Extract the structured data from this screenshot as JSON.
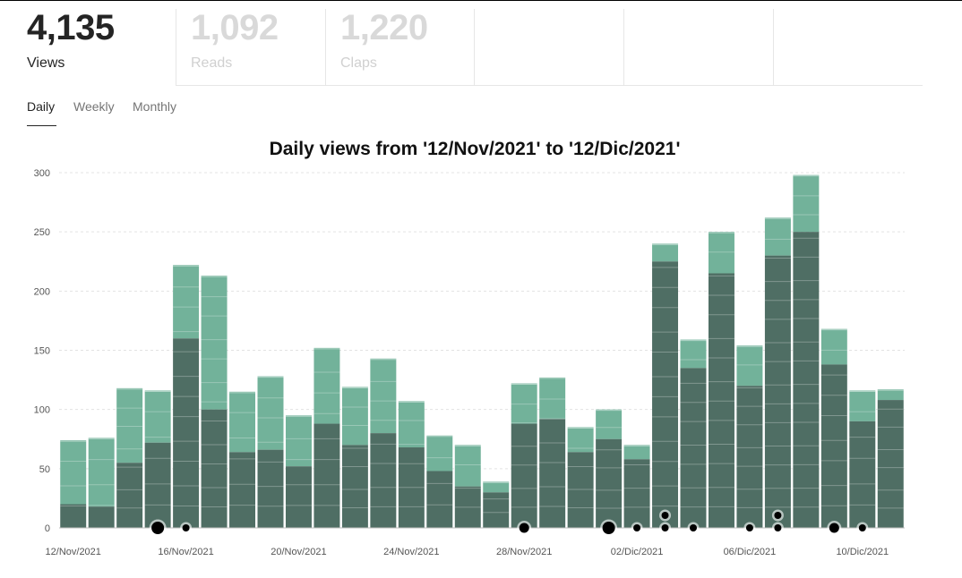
{
  "stats": [
    {
      "value": "4,135",
      "label": "Views"
    },
    {
      "value": "1,092",
      "label": "Reads"
    },
    {
      "value": "1,220",
      "label": "Claps"
    }
  ],
  "tabs": [
    {
      "label": "Daily",
      "active": true
    },
    {
      "label": "Weekly",
      "active": false
    },
    {
      "label": "Monthly",
      "active": false
    }
  ],
  "colors": {
    "bar_light": "#72b29a",
    "bar_dark": "#4f6e64",
    "bar_darkest": "#46504c",
    "marker": "#000000"
  },
  "chart_data": {
    "type": "bar",
    "title": "Daily views from '12/Nov/2021' to '12/Dic/2021'",
    "xlabel": "",
    "ylabel": "",
    "ylim": [
      0,
      300
    ],
    "yticks": [
      0,
      50,
      100,
      150,
      200,
      250,
      300
    ],
    "grid": true,
    "stacked": true,
    "categories": [
      "12/Nov/2021",
      "13/Nov/2021",
      "14/Nov/2021",
      "15/Nov/2021",
      "16/Nov/2021",
      "17/Nov/2021",
      "18/Nov/2021",
      "19/Nov/2021",
      "20/Nov/2021",
      "21/Nov/2021",
      "22/Nov/2021",
      "23/Nov/2021",
      "24/Nov/2021",
      "25/Nov/2021",
      "26/Nov/2021",
      "27/Nov/2021",
      "28/Nov/2021",
      "29/Nov/2021",
      "30/Nov/2021",
      "01/Dic/2021",
      "02/Dic/2021",
      "03/Dic/2021",
      "04/Dic/2021",
      "05/Dic/2021",
      "06/Dic/2021",
      "07/Dic/2021",
      "08/Dic/2021",
      "09/Dic/2021",
      "10/Dic/2021",
      "11/Dic/2021"
    ],
    "xtick_labels": [
      "12/Nov/2021",
      "16/Nov/2021",
      "20/Nov/2021",
      "24/Nov/2021",
      "28/Nov/2021",
      "02/Dic/2021",
      "06/Dic/2021",
      "10/Dic/2021"
    ],
    "totals": [
      74,
      76,
      118,
      116,
      222,
      213,
      115,
      128,
      95,
      152,
      119,
      143,
      107,
      78,
      70,
      39,
      122,
      127,
      85,
      100,
      70,
      240,
      159,
      250,
      154,
      262,
      298,
      168,
      116,
      117
    ],
    "dark_portion": [
      20,
      18,
      55,
      72,
      160,
      100,
      64,
      66,
      52,
      88,
      70,
      80,
      68,
      48,
      35,
      30,
      88,
      92,
      64,
      75,
      58,
      225,
      135,
      215,
      120,
      230,
      250,
      138,
      90,
      108
    ],
    "markers": [
      {
        "category": "15/Nov/2021",
        "size": "large"
      },
      {
        "category": "16/Nov/2021",
        "size": "small"
      },
      {
        "category": "28/Nov/2021",
        "size": "medium"
      },
      {
        "category": "01/Dic/2021",
        "size": "large"
      },
      {
        "category": "02/Dic/2021",
        "size": "small"
      },
      {
        "category": "03/Dic/2021",
        "size": "small"
      },
      {
        "category": "03/Dic/2021",
        "size": "small",
        "stack": 2
      },
      {
        "category": "04/Dic/2021",
        "size": "small"
      },
      {
        "category": "06/Dic/2021",
        "size": "small"
      },
      {
        "category": "07/Dic/2021",
        "size": "small"
      },
      {
        "category": "07/Dic/2021",
        "size": "small",
        "stack": 2
      },
      {
        "category": "09/Dic/2021",
        "size": "medium"
      },
      {
        "category": "10/Dic/2021",
        "size": "small"
      }
    ]
  }
}
